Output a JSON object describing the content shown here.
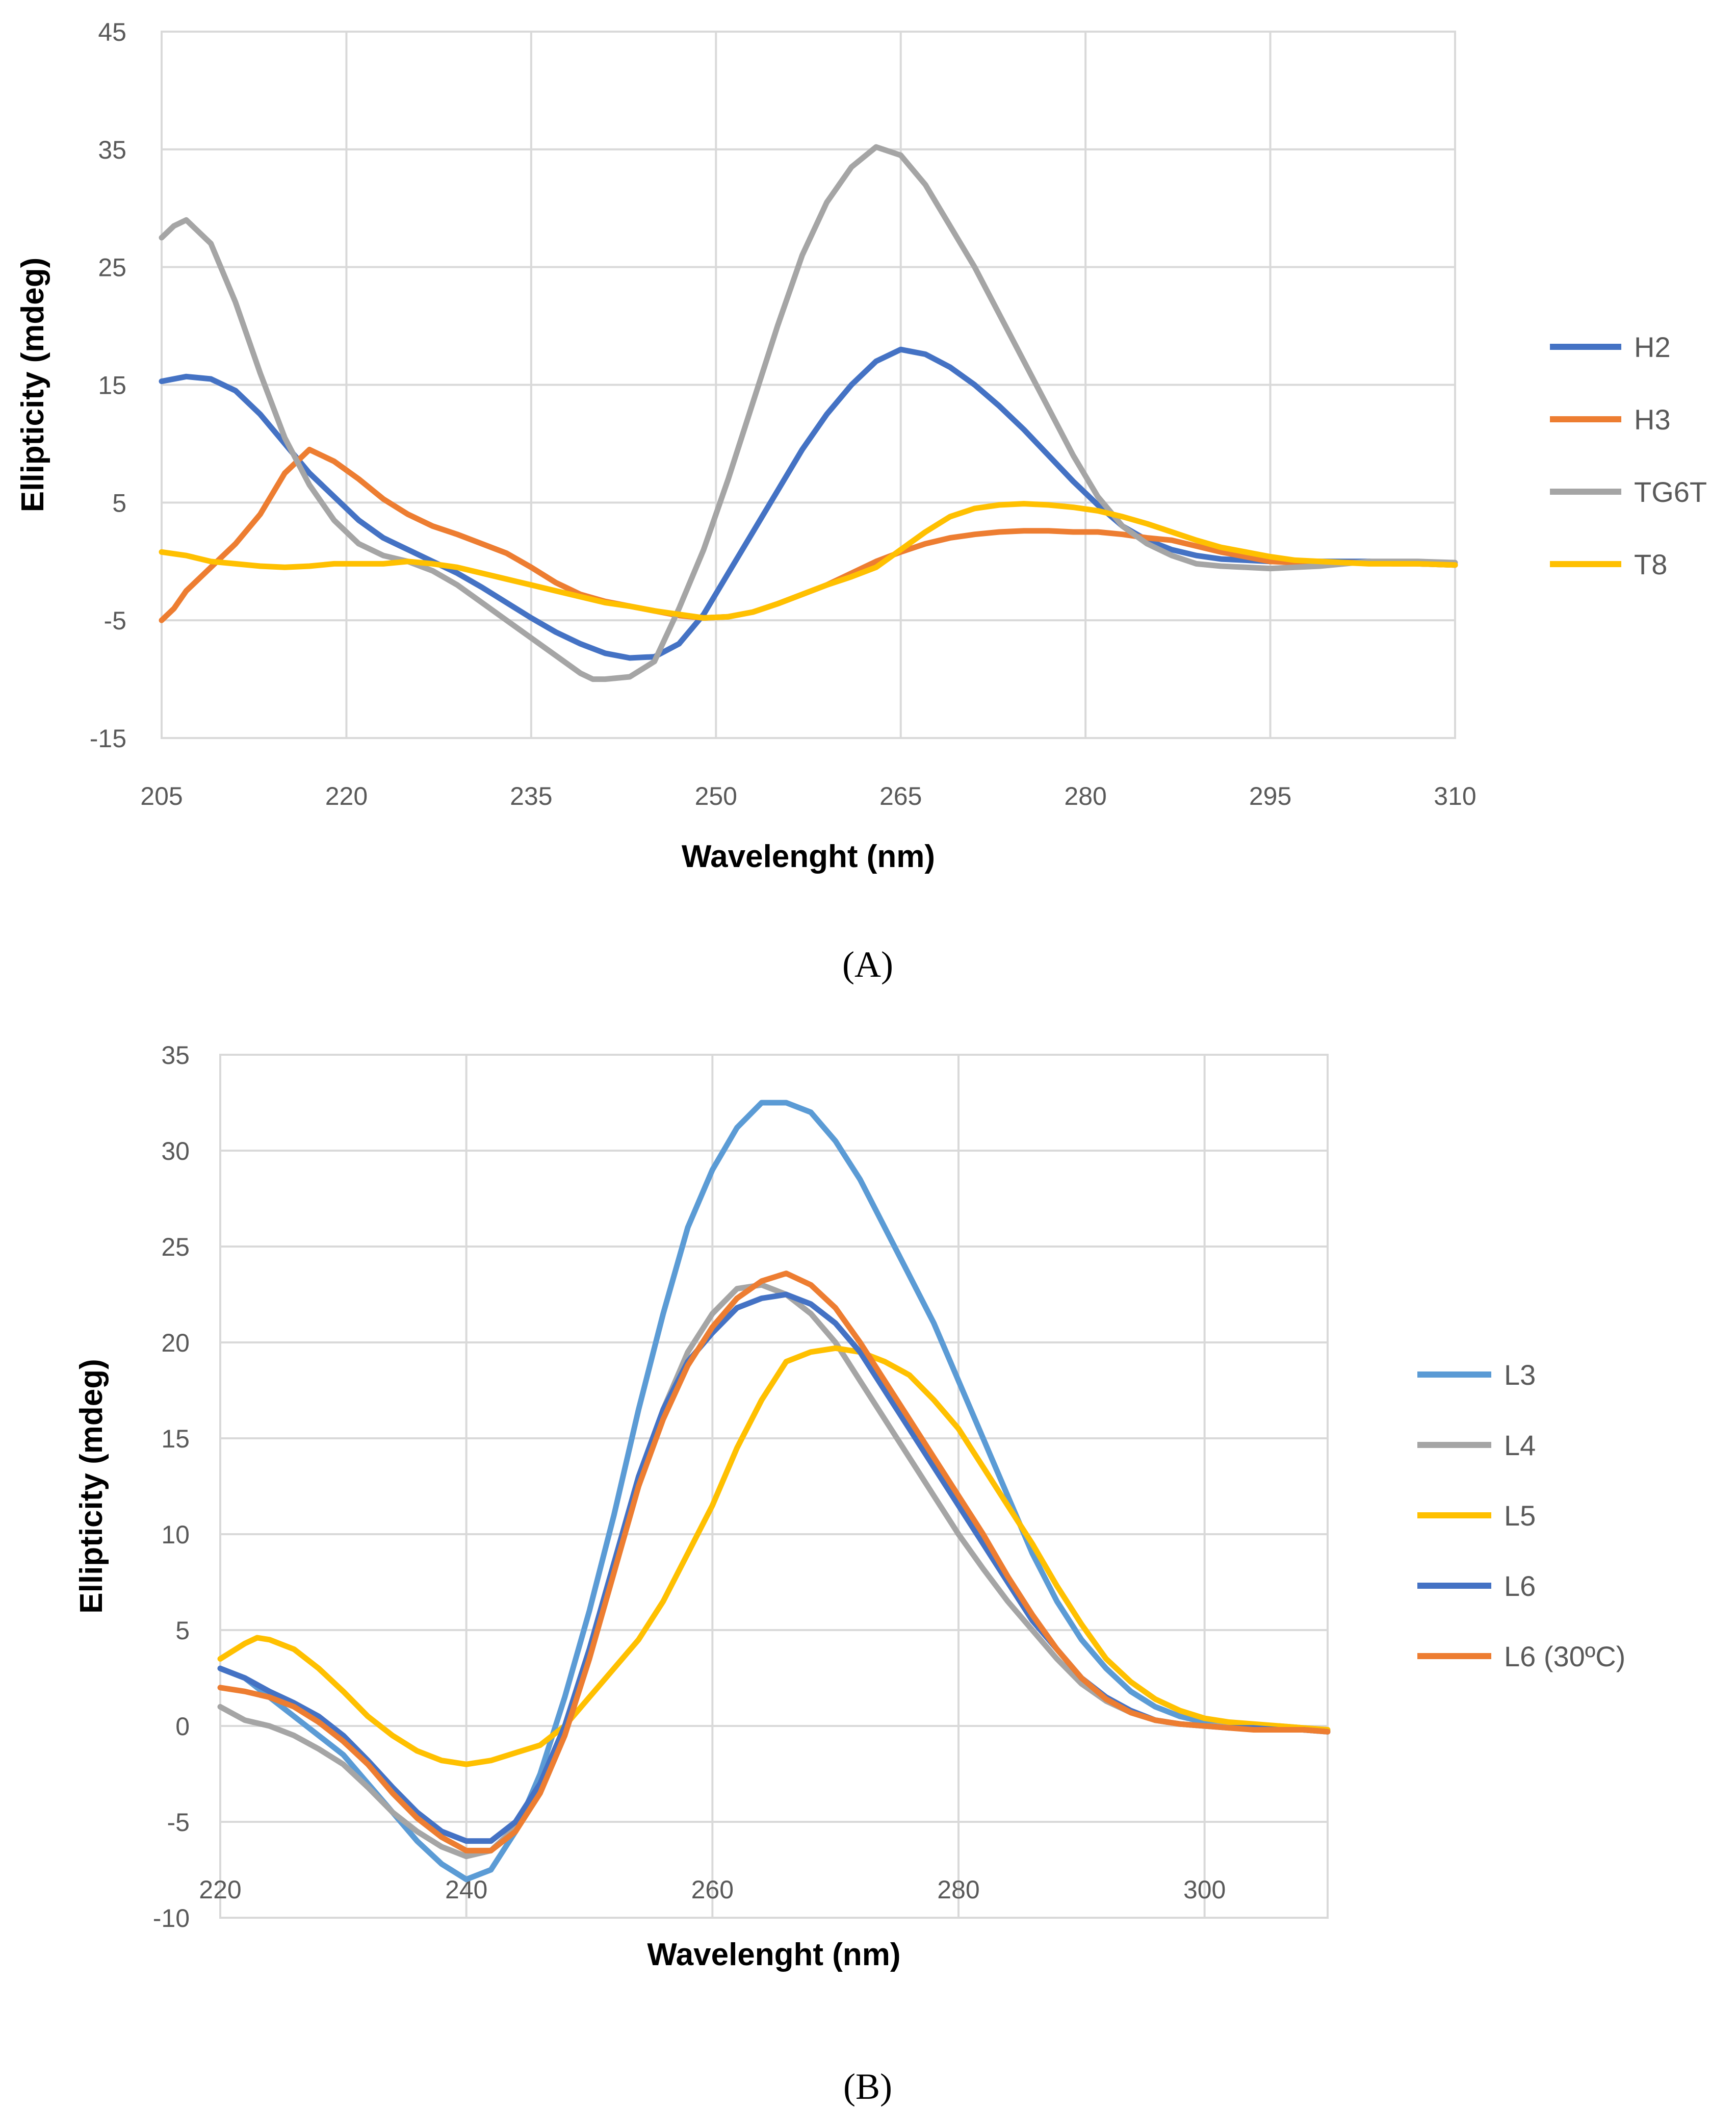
{
  "chart_data": [
    {
      "type": "line",
      "panel_label": "(A)",
      "xlabel": "Wavelenght (nm)",
      "ylabel": "Ellipticity (mdeg)",
      "xlim": [
        205,
        310
      ],
      "ylim": [
        -15,
        45
      ],
      "xticks": [
        205,
        220,
        235,
        250,
        265,
        280,
        295,
        310
      ],
      "yticks": [
        -15,
        -5,
        5,
        15,
        25,
        35,
        45
      ],
      "grid": true,
      "legend_position": "right",
      "series": [
        {
          "name": "H2",
          "color": "#4472C4",
          "x": [
            205,
            207,
            209,
            211,
            213,
            215,
            217,
            219,
            221,
            223,
            225,
            227,
            229,
            231,
            233,
            235,
            237,
            239,
            241,
            243,
            245,
            247,
            249,
            251,
            253,
            255,
            257,
            259,
            261,
            263,
            265,
            267,
            269,
            271,
            273,
            275,
            277,
            279,
            281,
            283,
            285,
            287,
            289,
            291,
            293,
            295,
            297,
            299,
            301,
            303,
            305,
            307,
            310
          ],
          "y": [
            15.3,
            15.7,
            15.5,
            14.5,
            12.5,
            10.0,
            7.5,
            5.5,
            3.5,
            2.0,
            1.0,
            0.0,
            -1.0,
            -2.2,
            -3.5,
            -4.8,
            -6.0,
            -7.0,
            -7.8,
            -8.2,
            -8.1,
            -7.0,
            -4.5,
            -1.0,
            2.5,
            6.0,
            9.5,
            12.5,
            15.0,
            17.0,
            18.0,
            17.6,
            16.5,
            15.0,
            13.2,
            11.2,
            9.0,
            6.8,
            4.8,
            3.0,
            1.8,
            1.0,
            0.5,
            0.2,
            0.1,
            0.0,
            0.0,
            0.0,
            0.0,
            0.0,
            -0.1,
            -0.2,
            -0.3
          ]
        },
        {
          "name": "H3",
          "color": "#ED7D31",
          "x": [
            205,
            206,
            207,
            209,
            211,
            213,
            215,
            217,
            219,
            221,
            223,
            225,
            227,
            229,
            231,
            233,
            235,
            237,
            239,
            241,
            243,
            245,
            247,
            249,
            251,
            253,
            255,
            257,
            259,
            261,
            263,
            265,
            267,
            269,
            271,
            273,
            275,
            277,
            279,
            281,
            283,
            285,
            287,
            289,
            291,
            293,
            295,
            297,
            299,
            301,
            303,
            305,
            307,
            310
          ],
          "y": [
            -5.0,
            -4.0,
            -2.5,
            -0.5,
            1.5,
            4.0,
            7.5,
            9.5,
            8.5,
            7.0,
            5.3,
            4.0,
            3.0,
            2.3,
            1.5,
            0.7,
            -0.5,
            -1.8,
            -2.8,
            -3.4,
            -3.8,
            -4.2,
            -4.6,
            -4.8,
            -4.7,
            -4.3,
            -3.6,
            -2.8,
            -2.0,
            -1.0,
            0.0,
            0.8,
            1.5,
            2.0,
            2.3,
            2.5,
            2.6,
            2.6,
            2.5,
            2.5,
            2.3,
            2.0,
            1.8,
            1.3,
            0.8,
            0.4,
            0.0,
            -0.1,
            -0.1,
            -0.1,
            -0.1,
            -0.2,
            -0.2,
            -0.3
          ]
        },
        {
          "name": "TG6T",
          "color": "#A5A5A5",
          "x": [
            205,
            206,
            207,
            209,
            211,
            213,
            215,
            217,
            219,
            221,
            223,
            225,
            227,
            229,
            231,
            233,
            235,
            237,
            239,
            240,
            241,
            243,
            245,
            247,
            249,
            251,
            253,
            255,
            257,
            259,
            261,
            263,
            265,
            267,
            269,
            271,
            273,
            275,
            277,
            279,
            281,
            283,
            285,
            287,
            289,
            291,
            293,
            295,
            297,
            299,
            301,
            303,
            305,
            307,
            310
          ],
          "y": [
            27.5,
            28.5,
            29.0,
            27.0,
            22.0,
            16.0,
            10.5,
            6.5,
            3.5,
            1.5,
            0.5,
            0.0,
            -0.8,
            -2.0,
            -3.5,
            -5.0,
            -6.5,
            -8.0,
            -9.5,
            -10.0,
            -10.0,
            -9.8,
            -8.5,
            -4.0,
            1.0,
            7.0,
            13.5,
            20.0,
            26.0,
            30.5,
            33.5,
            35.2,
            34.5,
            32.0,
            28.5,
            25.0,
            21.0,
            17.0,
            13.0,
            9.0,
            5.5,
            3.0,
            1.5,
            0.5,
            -0.2,
            -0.4,
            -0.5,
            -0.6,
            -0.5,
            -0.4,
            -0.2,
            0.0,
            0.0,
            0.0,
            -0.1
          ]
        },
        {
          "name": "T8",
          "color": "#FFC000",
          "x": [
            205,
            207,
            209,
            211,
            213,
            215,
            217,
            219,
            221,
            223,
            225,
            227,
            229,
            231,
            233,
            235,
            237,
            239,
            241,
            243,
            245,
            247,
            249,
            251,
            253,
            255,
            257,
            259,
            261,
            263,
            265,
            267,
            269,
            271,
            273,
            275,
            277,
            279,
            281,
            283,
            285,
            287,
            289,
            291,
            293,
            295,
            297,
            299,
            301,
            303,
            305,
            307,
            310
          ],
          "y": [
            0.8,
            0.5,
            0.0,
            -0.2,
            -0.4,
            -0.5,
            -0.4,
            -0.2,
            -0.2,
            -0.2,
            0.0,
            -0.2,
            -0.5,
            -1.0,
            -1.5,
            -2.0,
            -2.5,
            -3.0,
            -3.5,
            -3.8,
            -4.2,
            -4.5,
            -4.8,
            -4.7,
            -4.3,
            -3.6,
            -2.8,
            -2.0,
            -1.3,
            -0.5,
            1.0,
            2.5,
            3.8,
            4.5,
            4.8,
            4.9,
            4.8,
            4.6,
            4.3,
            3.8,
            3.2,
            2.5,
            1.8,
            1.2,
            0.8,
            0.4,
            0.1,
            0.0,
            -0.1,
            -0.2,
            -0.2,
            -0.2,
            -0.3
          ]
        }
      ]
    },
    {
      "type": "line",
      "panel_label": "(B)",
      "xlabel": "Wavelenght (nm)",
      "ylabel": "Ellipticity (mdeg)",
      "xlim": [
        220,
        310
      ],
      "ylim": [
        -10,
        35
      ],
      "xticks": [
        220,
        240,
        260,
        280,
        300
      ],
      "yticks": [
        -10,
        -5,
        0,
        5,
        10,
        15,
        20,
        25,
        30,
        35
      ],
      "grid": true,
      "legend_position": "right",
      "series": [
        {
          "name": "L3",
          "color": "#5B9BD5",
          "x": [
            220,
            222,
            224,
            226,
            228,
            230,
            232,
            234,
            236,
            238,
            240,
            242,
            244,
            246,
            248,
            250,
            252,
            254,
            256,
            258,
            260,
            262,
            264,
            266,
            268,
            270,
            272,
            274,
            276,
            278,
            280,
            282,
            284,
            286,
            288,
            290,
            292,
            294,
            296,
            298,
            300,
            302,
            304,
            306,
            308,
            310
          ],
          "y": [
            3.0,
            2.5,
            1.5,
            0.5,
            -0.5,
            -1.5,
            -3.0,
            -4.5,
            -6.0,
            -7.2,
            -8.0,
            -7.5,
            -5.5,
            -2.5,
            1.5,
            6.0,
            11.0,
            16.5,
            21.5,
            26.0,
            29.0,
            31.2,
            32.5,
            32.5,
            32.0,
            30.5,
            28.5,
            26.0,
            23.5,
            21.0,
            18.0,
            15.0,
            12.0,
            9.0,
            6.5,
            4.5,
            3.0,
            1.8,
            1.0,
            0.5,
            0.2,
            0.1,
            0.0,
            -0.1,
            -0.2,
            -0.3
          ]
        },
        {
          "name": "L4",
          "color": "#A5A5A5",
          "x": [
            220,
            222,
            224,
            226,
            228,
            230,
            232,
            234,
            236,
            238,
            240,
            242,
            244,
            246,
            248,
            250,
            252,
            254,
            256,
            258,
            260,
            262,
            264,
            266,
            268,
            270,
            272,
            274,
            276,
            278,
            280,
            282,
            284,
            286,
            288,
            290,
            292,
            294,
            296,
            298,
            300,
            302,
            304,
            306,
            308,
            310
          ],
          "y": [
            1.0,
            0.3,
            0.0,
            -0.5,
            -1.2,
            -2.0,
            -3.2,
            -4.5,
            -5.5,
            -6.3,
            -6.8,
            -6.5,
            -5.3,
            -3.0,
            0.0,
            4.0,
            8.5,
            12.5,
            16.5,
            19.5,
            21.5,
            22.8,
            23.0,
            22.5,
            21.5,
            20.0,
            18.0,
            16.0,
            14.0,
            12.0,
            10.0,
            8.2,
            6.5,
            5.0,
            3.5,
            2.2,
            1.3,
            0.7,
            0.3,
            0.1,
            0.0,
            0.0,
            0.0,
            0.0,
            -0.1,
            -0.2
          ]
        },
        {
          "name": "L5",
          "color": "#FFC000",
          "x": [
            220,
            222,
            223,
            224,
            226,
            228,
            230,
            232,
            234,
            236,
            238,
            240,
            242,
            244,
            246,
            248,
            250,
            252,
            254,
            256,
            258,
            260,
            262,
            264,
            266,
            268,
            270,
            272,
            274,
            276,
            278,
            280,
            282,
            284,
            286,
            288,
            290,
            292,
            294,
            296,
            298,
            300,
            302,
            304,
            306,
            308,
            310
          ],
          "y": [
            3.5,
            4.3,
            4.6,
            4.5,
            4.0,
            3.0,
            1.8,
            0.5,
            -0.5,
            -1.3,
            -1.8,
            -2.0,
            -1.8,
            -1.4,
            -1.0,
            0.0,
            1.5,
            3.0,
            4.5,
            6.5,
            9.0,
            11.5,
            14.5,
            17.0,
            19.0,
            19.5,
            19.7,
            19.5,
            19.0,
            18.3,
            17.0,
            15.5,
            13.5,
            11.5,
            9.5,
            7.3,
            5.3,
            3.5,
            2.3,
            1.4,
            0.8,
            0.4,
            0.2,
            0.1,
            0.0,
            -0.1,
            -0.2
          ]
        },
        {
          "name": "L6",
          "color": "#4472C4",
          "x": [
            220,
            222,
            224,
            226,
            228,
            230,
            232,
            234,
            236,
            238,
            240,
            242,
            244,
            246,
            248,
            250,
            252,
            254,
            256,
            258,
            260,
            262,
            264,
            266,
            268,
            270,
            272,
            274,
            276,
            278,
            280,
            282,
            284,
            286,
            288,
            290,
            292,
            294,
            296,
            298,
            300,
            302,
            304,
            306,
            308,
            310
          ],
          "y": [
            3.0,
            2.5,
            1.8,
            1.2,
            0.5,
            -0.5,
            -1.8,
            -3.2,
            -4.5,
            -5.5,
            -6.0,
            -6.0,
            -5.0,
            -3.0,
            0.0,
            4.0,
            8.5,
            13.0,
            16.5,
            19.0,
            20.5,
            21.8,
            22.3,
            22.5,
            22.0,
            21.0,
            19.5,
            17.5,
            15.5,
            13.5,
            11.5,
            9.5,
            7.5,
            5.5,
            4.0,
            2.5,
            1.5,
            0.8,
            0.3,
            0.1,
            0.0,
            -0.1,
            -0.1,
            -0.2,
            -0.2,
            -0.3
          ]
        },
        {
          "name": "L6 (30ºC)",
          "color": "#ED7D31",
          "x": [
            220,
            222,
            224,
            226,
            228,
            230,
            232,
            234,
            236,
            238,
            240,
            242,
            244,
            246,
            248,
            250,
            252,
            254,
            256,
            258,
            260,
            262,
            264,
            266,
            268,
            270,
            272,
            274,
            276,
            278,
            280,
            282,
            284,
            286,
            288,
            290,
            292,
            294,
            296,
            298,
            300,
            302,
            304,
            306,
            308,
            310
          ],
          "y": [
            2.0,
            1.8,
            1.5,
            1.0,
            0.2,
            -0.8,
            -2.0,
            -3.5,
            -4.8,
            -5.8,
            -6.5,
            -6.5,
            -5.5,
            -3.5,
            -0.5,
            3.5,
            8.0,
            12.5,
            16.0,
            18.8,
            20.8,
            22.3,
            23.2,
            23.6,
            23.0,
            21.8,
            20.0,
            18.0,
            16.0,
            14.0,
            12.0,
            10.0,
            7.8,
            5.8,
            4.0,
            2.5,
            1.4,
            0.7,
            0.3,
            0.1,
            0.0,
            -0.1,
            -0.2,
            -0.2,
            -0.2,
            -0.3
          ]
        }
      ]
    }
  ]
}
